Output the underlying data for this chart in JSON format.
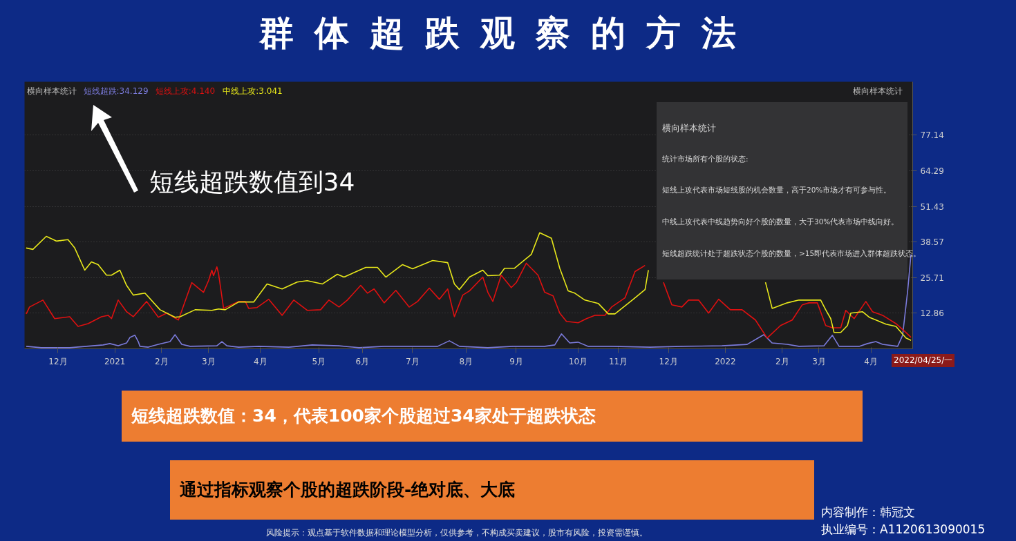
{
  "chart_data": {
    "type": "line",
    "title": "群体超跌观察的方法",
    "legend_title": "横向样本统计",
    "legend": "top left",
    "grid": "y",
    "xlim": [
      "2020-11-11",
      "2022-04-26"
    ],
    "ylim": [
      0,
      96.4
    ],
    "xticks": [
      {
        "value": "2020-12-01",
        "label": "12月"
      },
      {
        "value": "2021-01-04",
        "label": "2021"
      },
      {
        "value": "2021-02-01",
        "label": "2月"
      },
      {
        "value": "2021-03-01",
        "label": "3月"
      },
      {
        "value": "2021-04-01",
        "label": "4月"
      },
      {
        "value": "2021-05-06",
        "label": "5月"
      },
      {
        "value": "2021-06-01",
        "label": "6月"
      },
      {
        "value": "2021-07-01",
        "label": "7月"
      },
      {
        "value": "2021-08-02",
        "label": "8月"
      },
      {
        "value": "2021-09-01",
        "label": "9月"
      },
      {
        "value": "2021-10-08",
        "label": "10月"
      },
      {
        "value": "2021-11-01",
        "label": "11月"
      },
      {
        "value": "2021-12-01",
        "label": "12月"
      },
      {
        "value": "2022-01-04",
        "label": "2022"
      },
      {
        "value": "2022-02-07",
        "label": "2月"
      },
      {
        "value": "2022-03-01",
        "label": "3月"
      },
      {
        "value": "2022-04-01",
        "label": "4月"
      }
    ],
    "yticks": [
      12.86,
      25.71,
      38.57,
      51.43,
      64.29,
      77.14
    ],
    "series": [
      {
        "name": "短线超跌:34.129",
        "color": "#7b7bdc",
        "x": [
          "2020-11-12",
          "2020-11-21",
          "2020-12-08",
          "2020-12-28",
          "2021-01-01",
          "2021-01-06",
          "2021-01-11",
          "2021-01-13",
          "2021-01-16",
          "2021-01-18",
          "2021-01-19",
          "2021-01-24",
          "2021-01-30",
          "2021-02-06",
          "2021-02-09",
          "2021-02-13",
          "2021-02-18",
          "2021-03-06",
          "2021-03-09",
          "2021-03-12",
          "2021-03-19",
          "2021-03-31",
          "2021-04-18",
          "2021-05-02",
          "2021-05-18",
          "2021-05-30",
          "2021-06-14",
          "2021-07-16",
          "2021-07-23",
          "2021-07-29",
          "2021-08-15",
          "2021-08-30",
          "2021-09-18",
          "2021-09-24",
          "2021-09-28",
          "2021-10-03",
          "2021-10-08",
          "2021-10-14",
          "2021-10-28",
          "2021-11-20",
          "2021-12-09",
          "2022-01-02",
          "2022-01-17",
          "2022-01-27",
          "2022-02-01",
          "2022-02-10",
          "2022-02-17",
          "2022-03-04",
          "2022-03-09",
          "2022-03-13",
          "2022-03-25",
          "2022-03-30",
          "2022-04-04",
          "2022-04-08",
          "2022-04-17",
          "2022-04-20",
          "2022-04-23",
          "2022-04-25"
        ],
        "values": [
          0.9,
          0.4,
          0.4,
          1.4,
          1.9,
          1.1,
          2.1,
          4.1,
          4.9,
          2.6,
          0.9,
          0.6,
          1.6,
          2.6,
          5.1,
          1.6,
          0.9,
          1.1,
          2.6,
          1.1,
          0.6,
          0.9,
          0.6,
          1.4,
          1.1,
          0.4,
          0.9,
          0.9,
          2.9,
          0.9,
          0.4,
          0.9,
          0.9,
          1.4,
          5.4,
          2.1,
          2.4,
          0.9,
          0.9,
          0.6,
          0.9,
          1.1,
          1.6,
          5.1,
          2.1,
          1.6,
          0.9,
          1.1,
          4.9,
          0.9,
          0.9,
          1.9,
          2.6,
          1.6,
          0.9,
          4.9,
          20.9,
          34.129
        ]
      },
      {
        "name": "短线上攻:4.140",
        "color": "#e01010",
        "x": [
          "2020-11-12",
          "2020-11-14",
          "2020-11-22",
          "2020-11-29",
          "2020-12-08",
          "2020-12-13",
          "2020-12-19",
          "2020-12-27",
          "2020-12-31",
          "2021-01-02",
          "2021-01-06",
          "2021-01-11",
          "2021-01-15",
          "2021-01-23",
          "2021-01-30",
          "2021-02-04",
          "2021-02-11",
          "2021-02-19",
          "2021-02-26",
          "2021-03-01",
          "2021-03-03",
          "2021-03-04",
          "2021-03-06",
          "2021-03-07",
          "2021-03-10",
          "2021-03-19",
          "2021-03-23",
          "2021-03-25",
          "2021-03-30",
          "2021-04-06",
          "2021-04-14",
          "2021-04-21",
          "2021-04-29",
          "2021-05-07",
          "2021-05-12",
          "2021-05-18",
          "2021-05-23",
          "2021-05-31",
          "2021-06-04",
          "2021-06-08",
          "2021-06-14",
          "2021-06-21",
          "2021-06-29",
          "2021-07-04",
          "2021-07-11",
          "2021-07-17",
          "2021-07-22",
          "2021-07-26",
          "2021-07-31",
          "2021-08-04",
          "2021-08-12",
          "2021-08-15",
          "2021-08-18",
          "2021-08-23",
          "2021-08-29",
          "2021-09-01",
          "2021-09-07",
          "2021-09-14",
          "2021-09-18",
          "2021-09-23",
          "2021-09-27",
          "2021-10-01",
          "2021-10-08",
          "2021-10-13",
          "2021-10-18",
          "2021-10-24",
          "2021-10-28",
          "2021-11-05",
          "2021-11-11",
          "2021-11-17",
          "2021-11-22",
          "2021-11-28",
          "2021-12-03",
          "2021-12-09",
          "2021-12-13",
          "2021-12-19",
          "2021-12-25",
          "2021-12-31",
          "2022-01-07",
          "2022-01-14",
          "2022-01-22",
          "2022-01-29",
          "2022-02-06",
          "2022-02-13",
          "2022-02-19",
          "2022-02-23",
          "2022-02-28",
          "2022-03-05",
          "2022-03-09",
          "2022-03-14",
          "2022-03-17",
          "2022-03-22",
          "2022-03-29",
          "2022-04-02",
          "2022-04-08",
          "2022-04-16",
          "2022-04-22",
          "2022-04-25"
        ],
        "values": [
          12.6,
          15.1,
          17.6,
          10.9,
          11.6,
          8.1,
          9.1,
          11.6,
          12.1,
          10.9,
          17.6,
          13.4,
          11.6,
          17.1,
          11.4,
          12.9,
          10.4,
          23.9,
          20.4,
          24.6,
          28.4,
          26.4,
          29.6,
          27.1,
          14.6,
          17.1,
          17.1,
          14.6,
          14.9,
          17.9,
          12.1,
          17.6,
          13.9,
          14.1,
          17.6,
          15.1,
          17.6,
          22.9,
          20.1,
          21.6,
          16.6,
          21.1,
          15.1,
          17.1,
          21.9,
          17.9,
          21.6,
          11.6,
          19.4,
          20.9,
          25.9,
          20.4,
          17.1,
          26.6,
          22.1,
          23.9,
          30.9,
          26.6,
          20.4,
          19.1,
          12.9,
          9.9,
          9.4,
          10.9,
          12.1,
          12.1,
          15.1,
          18.4,
          27.9,
          30.1,
          null,
          24.0,
          15.9,
          15.1,
          17.6,
          17.6,
          12.9,
          17.9,
          14.1,
          14.1,
          10.4,
          3.9,
          8.4,
          10.4,
          15.9,
          16.6,
          16.6,
          8.4,
          7.6,
          7.6,
          13.9,
          10.9,
          17.1,
          13.4,
          12.1,
          9.1,
          5.9,
          4.14
        ]
      },
      {
        "name": "中线上攻:3.041",
        "color": "#e8e81a",
        "x": [
          "2020-11-12",
          "2020-11-16",
          "2020-11-24",
          "2020-11-30",
          "2020-12-07",
          "2020-12-11",
          "2020-12-17",
          "2020-12-21",
          "2020-12-25",
          "2020-12-30",
          "2021-01-02",
          "2021-01-07",
          "2021-01-11",
          "2021-01-15",
          "2021-01-22",
          "2021-01-31",
          "2021-02-09",
          "2021-02-12",
          "2021-02-21",
          "2021-03-03",
          "2021-03-07",
          "2021-03-11",
          "2021-03-19",
          "2021-03-28",
          "2021-04-05",
          "2021-04-14",
          "2021-04-23",
          "2021-04-29",
          "2021-05-08",
          "2021-05-17",
          "2021-05-21",
          "2021-06-03",
          "2021-06-10",
          "2021-06-15",
          "2021-06-25",
          "2021-07-01",
          "2021-07-13",
          "2021-07-22",
          "2021-07-26",
          "2021-07-29",
          "2021-08-04",
          "2021-08-12",
          "2021-08-15",
          "2021-08-22",
          "2021-08-25",
          "2021-08-31",
          "2021-09-10",
          "2021-09-15",
          "2021-09-22",
          "2021-09-27",
          "2021-10-02",
          "2021-10-06",
          "2021-10-12",
          "2021-10-20",
          "2021-10-26",
          "2021-10-30",
          "2021-11-10",
          "2021-11-17",
          "2021-11-19",
          "2021-12-23",
          "2022-01-28",
          "2022-02-01",
          "2022-02-10",
          "2022-02-17",
          "2022-03-02",
          "2022-03-05",
          "2022-03-08",
          "2022-03-10",
          "2022-03-14",
          "2022-03-18",
          "2022-03-20",
          "2022-03-27",
          "2022-03-31",
          "2022-04-10",
          "2022-04-16",
          "2022-04-22",
          "2022-04-25"
        ],
        "values": [
          36.4,
          35.9,
          40.6,
          38.9,
          39.4,
          36.4,
          28.4,
          31.4,
          30.4,
          26.6,
          26.6,
          28.4,
          22.9,
          19.4,
          20.1,
          14.1,
          11.4,
          11.6,
          14.1,
          13.9,
          14.4,
          14.1,
          16.9,
          16.9,
          23.4,
          21.6,
          24.1,
          24.6,
          23.4,
          26.9,
          25.9,
          29.4,
          29.4,
          25.9,
          30.4,
          28.9,
          31.9,
          31.1,
          23.4,
          21.4,
          25.9,
          28.4,
          26.4,
          26.6,
          29.1,
          29.1,
          34.1,
          41.9,
          39.9,
          29.1,
          20.9,
          20.1,
          17.6,
          16.4,
          12.6,
          12.6,
          17.9,
          21.4,
          28.4,
          null,
          24.0,
          14.6,
          16.6,
          17.6,
          17.6,
          14.1,
          10.9,
          5.9,
          5.9,
          8.4,
          12.9,
          13.4,
          11.4,
          8.9,
          8.1,
          3.9,
          3.041
        ]
      }
    ],
    "annotations": [
      "横向样本统计",
      "横向样本统计",
      "统计市场所有个股的状态:",
      "短线上攻代表市场短线股的机会数量，高于20%市场才有可参与性。",
      "中线上攻代表中线趋势向好个股的数量，大于30%代表市场中线向好。",
      "短线超跌统计处于超跌状态个股的数量，>15即代表市场进入群体超跌状态。",
      "短线超跌数值到34",
      "短线超跌数值：34，代表100家个股超过34家处于超跌状态",
      "通过指标观察个股的超跌阶段-绝对底、大底",
      "内容制作：韩冠文",
      "执业编号：A1120613090015",
      "风险提示：观点基于软件数据和理论模型分析，仅供参考，不构成买卖建议，股市有风险，投资需谨慎。",
      "2022/04/25/一"
    ]
  }
}
